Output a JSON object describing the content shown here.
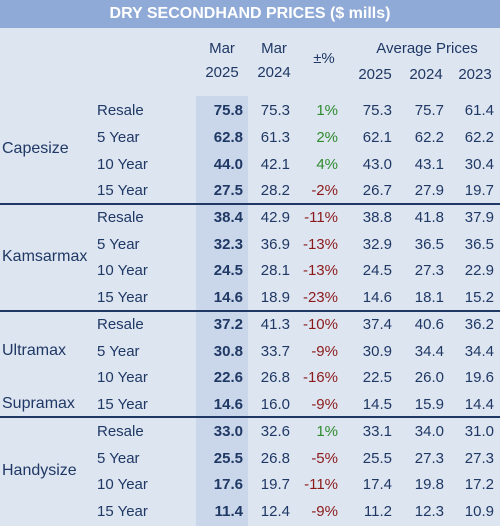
{
  "title": "DRY SECONDHAND PRICES ($ mills)",
  "headers": {
    "mar2025_line1": "Mar",
    "mar2025_line2": "2025",
    "mar2024_line1": "Mar",
    "mar2024_line2": "2024",
    "pct": "±%",
    "avg": "Average Prices",
    "avg2025": "2025",
    "avg2024": "2024",
    "avg2023": "2023"
  },
  "groups": {
    "capesize": "Capesize",
    "kamsarmax": "Kamsarmax",
    "ultramax": "Ultramax",
    "supramax": "Supramax",
    "handysize": "Handysize"
  },
  "rows": [
    {
      "name": "Resale",
      "mar25": "75.8",
      "mar24": "75.3",
      "pct": "1%",
      "a25": "75.3",
      "a24": "75.7",
      "a23": "61.4"
    },
    {
      "name": "5 Year",
      "mar25": "62.8",
      "mar24": "61.3",
      "pct": "2%",
      "a25": "62.1",
      "a24": "62.2",
      "a23": "62.2"
    },
    {
      "name": "10 Year",
      "mar25": "44.0",
      "mar24": "42.1",
      "pct": "4%",
      "a25": "43.0",
      "a24": "43.1",
      "a23": "30.4"
    },
    {
      "name": "15 Year",
      "mar25": "27.5",
      "mar24": "28.2",
      "pct": "-2%",
      "a25": "26.7",
      "a24": "27.9",
      "a23": "19.7"
    },
    {
      "name": "Resale",
      "mar25": "38.4",
      "mar24": "42.9",
      "pct": "-11%",
      "a25": "38.8",
      "a24": "41.8",
      "a23": "37.9"
    },
    {
      "name": "5 Year",
      "mar25": "32.3",
      "mar24": "36.9",
      "pct": "-13%",
      "a25": "32.9",
      "a24": "36.5",
      "a23": "36.5"
    },
    {
      "name": "10 Year",
      "mar25": "24.5",
      "mar24": "28.1",
      "pct": "-13%",
      "a25": "24.5",
      "a24": "27.3",
      "a23": "22.9"
    },
    {
      "name": "15 Year",
      "mar25": "14.6",
      "mar24": "18.9",
      "pct": "-23%",
      "a25": "14.6",
      "a24": "18.1",
      "a23": "15.2"
    },
    {
      "name": "Resale",
      "mar25": "37.2",
      "mar24": "41.3",
      "pct": "-10%",
      "a25": "37.4",
      "a24": "40.6",
      "a23": "36.2"
    },
    {
      "name": "5 Year",
      "mar25": "30.8",
      "mar24": "33.7",
      "pct": "-9%",
      "a25": "30.9",
      "a24": "34.4",
      "a23": "34.4"
    },
    {
      "name": "10 Year",
      "mar25": "22.6",
      "mar24": "26.8",
      "pct": "-16%",
      "a25": "22.5",
      "a24": "26.0",
      "a23": "19.6"
    },
    {
      "name": "15 Year",
      "mar25": "14.6",
      "mar24": "16.0",
      "pct": "-9%",
      "a25": "14.5",
      "a24": "15.9",
      "a23": "14.4"
    },
    {
      "name": "Resale",
      "mar25": "33.0",
      "mar24": "32.6",
      "pct": "1%",
      "a25": "33.1",
      "a24": "34.0",
      "a23": "31.0"
    },
    {
      "name": "5 Year",
      "mar25": "25.5",
      "mar24": "26.8",
      "pct": "-5%",
      "a25": "25.5",
      "a24": "27.3",
      "a23": "27.3"
    },
    {
      "name": "10 Year",
      "mar25": "17.6",
      "mar24": "19.7",
      "pct": "-11%",
      "a25": "17.4",
      "a24": "19.8",
      "a23": "17.2"
    },
    {
      "name": "15 Year",
      "mar25": "11.4",
      "mar24": "12.4",
      "pct": "-9%",
      "a25": "11.2",
      "a24": "12.3",
      "a23": "10.9"
    }
  ],
  "colors": {
    "positive": "#2e8b2e",
    "negative": "#8b1a1a",
    "title_bg": "#8faad6",
    "text": "#1f3864"
  }
}
